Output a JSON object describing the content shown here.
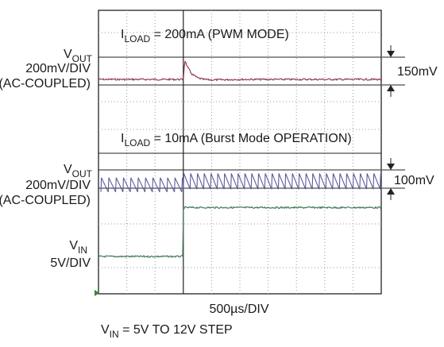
{
  "chart_data": {
    "type": "line",
    "top_panel": {
      "title_prefix": "I",
      "title_subscript": "LOAD",
      "title_suffix": " = 200mA (PWM MODE)",
      "channel": {
        "name_prefix": "V",
        "name_subscript": "OUT",
        "scale": "200mV/DIV",
        "coupling": "(AC-COUPLED)"
      },
      "annotation": "150mV",
      "trace_color": "#8a2a4a",
      "series": {
        "name": "VOUT",
        "x": [
          0,
          1.5,
          2.9,
          3.0,
          3.05,
          3.15,
          3.3,
          3.5,
          3.7,
          4.0,
          5.0,
          6.0
        ],
        "y": [
          0,
          0,
          0,
          0,
          0.72,
          0.45,
          0.2,
          0.06,
          0.0,
          -0.02,
          0,
          0
        ]
      }
    },
    "bottom_panel": {
      "title_prefix": "I",
      "title_subscript": "LOAD",
      "title_suffix": " = 10mA (Burst Mode OPERATION)",
      "vout_channel": {
        "name_prefix": "V",
        "name_subscript": "OUT",
        "scale": "200mV/DIV",
        "coupling": "(AC-COUPLED)"
      },
      "vin_channel": {
        "name_prefix": "V",
        "name_subscript": "IN",
        "scale": "5V/DIV"
      },
      "annotation": "100mV",
      "vout_color": "#5a5a9a",
      "vin_color": "#3f7a55",
      "vout_ripple_before": {
        "period_div": 0.26,
        "peak_div": 0.45,
        "valley_div": -0.05
      },
      "vout_ripple_after": {
        "period_div": 0.24,
        "peak_div": 0.55,
        "valley_div": 0.0
      },
      "vin_series": {
        "name": "VIN",
        "x": [
          0,
          2.99,
          3.0,
          3.01,
          6.0
        ],
        "y": [
          0,
          0,
          1.4,
          1.4,
          1.4
        ]
      }
    },
    "x_axis": {
      "divisions": 10,
      "step_at_div": 3.0,
      "time_scale": "500µs/DIV"
    },
    "caption_prefix": "V",
    "caption_subscript": "IN",
    "caption_suffix": " = 5V TO 12V STEP",
    "grid": "dotted",
    "grid_color": "#999999",
    "frame_color": "#222222",
    "trigger_marker_color": "#2e8b3a"
  }
}
